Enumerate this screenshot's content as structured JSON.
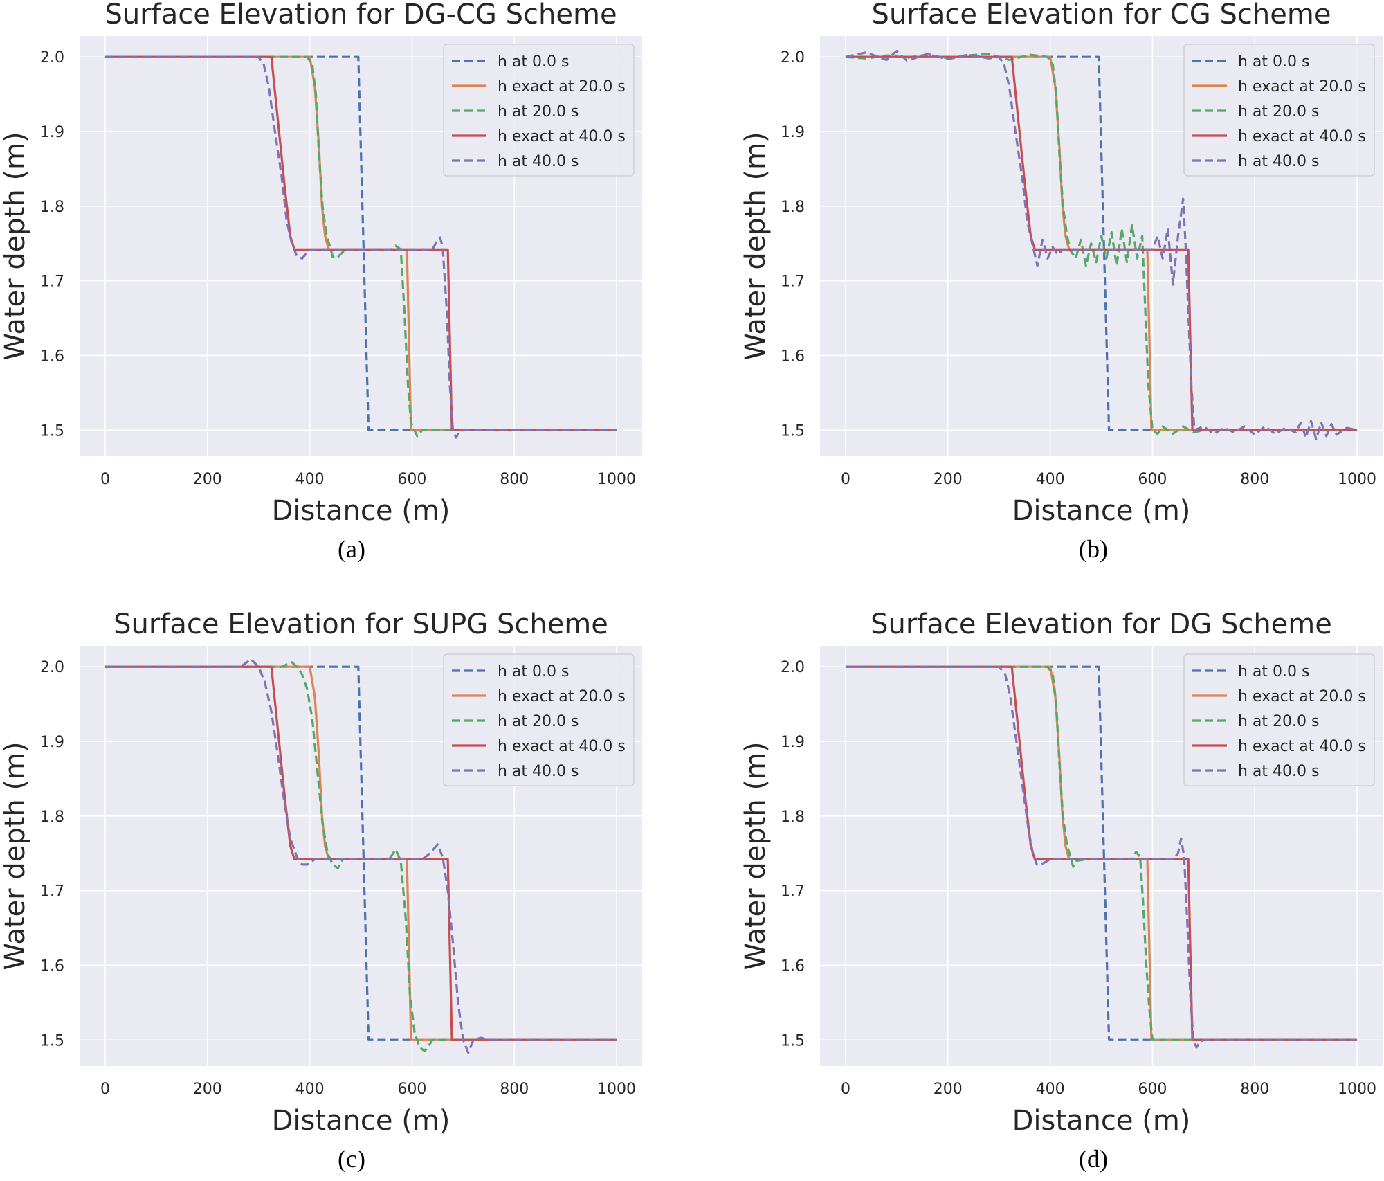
{
  "figure": {
    "captions": [
      "(a)",
      "(b)",
      "(c)",
      "(d)"
    ]
  },
  "series_style": [
    {
      "name": "h at 0.0 s",
      "color": "#4c72b0",
      "dashed": true
    },
    {
      "name": "h exact at 20.0 s",
      "color": "#dd8452",
      "dashed": false
    },
    {
      "name": "h at 20.0 s",
      "color": "#55a868",
      "dashed": true
    },
    {
      "name": "h exact at 40.0 s",
      "color": "#c44e52",
      "dashed": false
    },
    {
      "name": "h at 40.0 s",
      "color": "#8172b3",
      "dashed": true
    }
  ],
  "chart_data": [
    {
      "type": "line",
      "title": "Surface Elevation for DG-CG Scheme",
      "xlabel": "Distance (m)",
      "ylabel": "Water depth (m)",
      "xlim": [
        -50,
        1050
      ],
      "ylim": [
        1.465,
        2.028
      ],
      "xticks": [
        0,
        200,
        400,
        600,
        800,
        1000
      ],
      "yticks": [
        1.5,
        1.6,
        1.7,
        1.8,
        1.9,
        2.0
      ],
      "legend": "top-right",
      "series": [
        {
          "name": "h at 0.0 s",
          "x": [
            0,
            495,
            515,
            1000
          ],
          "y": [
            2.0,
            2.0,
            1.5,
            1.5
          ]
        },
        {
          "name": "h exact at 20.0 s",
          "x": [
            0,
            400,
            410,
            418,
            424,
            430,
            437,
            590,
            598,
            1000
          ],
          "y": [
            2.0,
            2.0,
            1.96,
            1.88,
            1.8,
            1.76,
            1.742,
            1.742,
            1.5,
            1.5
          ]
        },
        {
          "name": "h at 20.0 s",
          "x": [
            0,
            395,
            405,
            412,
            418,
            425,
            433,
            440,
            445,
            452,
            470,
            560,
            568,
            578,
            585,
            592,
            598,
            610,
            620,
            1000
          ],
          "y": [
            2.0,
            2.0,
            1.99,
            1.95,
            1.87,
            1.8,
            1.76,
            1.745,
            1.732,
            1.73,
            1.742,
            1.742,
            1.747,
            1.742,
            1.66,
            1.56,
            1.51,
            1.492,
            1.5,
            1.5
          ]
        },
        {
          "name": "h exact at 40.0 s",
          "x": [
            0,
            325,
            340,
            352,
            362,
            370,
            670,
            678,
            1000
          ],
          "y": [
            2.0,
            2.0,
            1.9,
            1.82,
            1.76,
            1.742,
            1.742,
            1.5,
            1.5
          ]
        },
        {
          "name": "h at 40.0 s",
          "x": [
            0,
            300,
            310,
            320,
            332,
            345,
            355,
            365,
            375,
            385,
            400,
            640,
            650,
            655,
            660,
            668,
            674,
            680,
            686,
            692,
            700,
            1000
          ],
          "y": [
            2.0,
            2.0,
            1.99,
            1.96,
            1.9,
            1.84,
            1.78,
            1.75,
            1.733,
            1.73,
            1.742,
            1.742,
            1.755,
            1.758,
            1.745,
            1.66,
            1.56,
            1.5,
            1.49,
            1.497,
            1.5,
            1.5
          ]
        }
      ]
    },
    {
      "type": "line",
      "title": "Surface Elevation for CG Scheme",
      "xlabel": "Distance (m)",
      "ylabel": "Water depth (m)",
      "xlim": [
        -50,
        1050
      ],
      "ylim": [
        1.465,
        2.028
      ],
      "xticks": [
        0,
        200,
        400,
        600,
        800,
        1000
      ],
      "yticks": [
        1.5,
        1.6,
        1.7,
        1.8,
        1.9,
        2.0
      ],
      "legend": "top-right",
      "series": [
        {
          "name": "h at 0.0 s",
          "x": [
            0,
            495,
            515,
            1000
          ],
          "y": [
            2.0,
            2.0,
            1.5,
            1.5
          ]
        },
        {
          "name": "h exact at 20.0 s",
          "x": [
            0,
            400,
            410,
            418,
            424,
            430,
            437,
            590,
            598,
            1000
          ],
          "y": [
            2.0,
            2.0,
            1.96,
            1.88,
            1.8,
            1.76,
            1.742,
            1.742,
            1.5,
            1.5
          ]
        },
        {
          "name": "h at 20.0 s",
          "x": [
            0,
            40,
            80,
            120,
            160,
            200,
            240,
            280,
            320,
            360,
            395,
            405,
            412,
            418,
            425,
            433,
            440,
            450,
            460,
            470,
            480,
            490,
            500,
            510,
            520,
            530,
            540,
            550,
            560,
            570,
            580,
            586,
            592,
            600,
            610,
            620,
            640,
            660,
            680,
            700,
            1000
          ],
          "y": [
            2.0,
            1.998,
            2.002,
            1.999,
            2.003,
            1.998,
            2.002,
            2.004,
            1.996,
            2.003,
            2.0,
            1.99,
            1.95,
            1.87,
            1.8,
            1.76,
            1.74,
            1.73,
            1.755,
            1.72,
            1.75,
            1.725,
            1.76,
            1.73,
            1.765,
            1.72,
            1.77,
            1.725,
            1.775,
            1.73,
            1.76,
            1.66,
            1.56,
            1.5,
            1.495,
            1.505,
            1.495,
            1.505,
            1.497,
            1.5,
            1.5
          ]
        },
        {
          "name": "h exact at 40.0 s",
          "x": [
            0,
            325,
            340,
            352,
            362,
            370,
            670,
            678,
            1000
          ],
          "y": [
            2.0,
            2.0,
            1.9,
            1.82,
            1.76,
            1.742,
            1.742,
            1.5,
            1.5
          ]
        },
        {
          "name": "h at 40.0 s",
          "x": [
            0,
            40,
            80,
            100,
            120,
            160,
            200,
            240,
            280,
            300,
            310,
            320,
            332,
            345,
            355,
            365,
            375,
            385,
            395,
            405,
            415,
            425,
            600,
            610,
            620,
            630,
            640,
            650,
            660,
            665,
            670,
            676,
            682,
            700,
            720,
            740,
            760,
            780,
            800,
            820,
            840,
            860,
            880,
            890,
            900,
            910,
            920,
            930,
            940,
            950,
            960,
            980,
            1000
          ],
          "y": [
            2.0,
            2.006,
            1.996,
            2.008,
            1.995,
            2.004,
            1.997,
            2.003,
            1.998,
            2.0,
            1.99,
            1.96,
            1.9,
            1.84,
            1.78,
            1.75,
            1.72,
            1.755,
            1.73,
            1.745,
            1.735,
            1.742,
            1.742,
            1.76,
            1.73,
            1.77,
            1.695,
            1.76,
            1.81,
            1.745,
            1.66,
            1.56,
            1.5,
            1.505,
            1.495,
            1.503,
            1.497,
            1.505,
            1.494,
            1.505,
            1.495,
            1.503,
            1.497,
            1.51,
            1.49,
            1.512,
            1.488,
            1.51,
            1.492,
            1.508,
            1.494,
            1.503,
            1.5
          ]
        }
      ]
    },
    {
      "type": "line",
      "title": "Surface Elevation for SUPG Scheme",
      "xlabel": "Distance (m)",
      "ylabel": "Water depth (m)",
      "xlim": [
        -50,
        1050
      ],
      "ylim": [
        1.465,
        2.028
      ],
      "xticks": [
        0,
        200,
        400,
        600,
        800,
        1000
      ],
      "yticks": [
        1.5,
        1.6,
        1.7,
        1.8,
        1.9,
        2.0
      ],
      "legend": "top-right",
      "series": [
        {
          "name": "h at 0.0 s",
          "x": [
            0,
            495,
            515,
            1000
          ],
          "y": [
            2.0,
            2.0,
            1.5,
            1.5
          ]
        },
        {
          "name": "h exact at 20.0 s",
          "x": [
            0,
            400,
            410,
            418,
            424,
            430,
            437,
            590,
            598,
            1000
          ],
          "y": [
            2.0,
            2.0,
            1.96,
            1.88,
            1.8,
            1.76,
            1.742,
            1.742,
            1.5,
            1.5
          ]
        },
        {
          "name": "h at 20.0 s",
          "x": [
            0,
            345,
            365,
            375,
            385,
            395,
            405,
            415,
            425,
            435,
            445,
            455,
            465,
            555,
            568,
            578,
            588,
            596,
            605,
            615,
            625,
            640,
            1000
          ],
          "y": [
            2.0,
            2.0,
            2.006,
            2.0,
            1.99,
            1.97,
            1.93,
            1.86,
            1.79,
            1.75,
            1.735,
            1.73,
            1.742,
            1.742,
            1.755,
            1.74,
            1.66,
            1.56,
            1.51,
            1.49,
            1.485,
            1.5,
            1.5
          ]
        },
        {
          "name": "h exact at 40.0 s",
          "x": [
            0,
            325,
            340,
            352,
            362,
            370,
            670,
            678,
            1000
          ],
          "y": [
            2.0,
            2.0,
            1.9,
            1.82,
            1.76,
            1.742,
            1.742,
            1.5,
            1.5
          ]
        },
        {
          "name": "h at 40.0 s",
          "x": [
            0,
            265,
            285,
            300,
            312,
            325,
            338,
            350,
            362,
            375,
            385,
            395,
            410,
            620,
            635,
            650,
            660,
            670,
            680,
            690,
            700,
            710,
            720,
            735,
            750,
            1000
          ],
          "y": [
            2.0,
            2.0,
            2.01,
            2.0,
            1.98,
            1.94,
            1.88,
            1.82,
            1.77,
            1.745,
            1.735,
            1.735,
            1.742,
            1.742,
            1.75,
            1.762,
            1.745,
            1.7,
            1.63,
            1.55,
            1.5,
            1.483,
            1.5,
            1.503,
            1.5,
            1.5
          ]
        }
      ]
    },
    {
      "type": "line",
      "title": "Surface Elevation for DG Scheme",
      "xlabel": "Distance (m)",
      "ylabel": "Water depth (m)",
      "xlim": [
        -50,
        1050
      ],
      "ylim": [
        1.465,
        2.028
      ],
      "xticks": [
        0,
        200,
        400,
        600,
        800,
        1000
      ],
      "yticks": [
        1.5,
        1.6,
        1.7,
        1.8,
        1.9,
        2.0
      ],
      "legend": "top-right",
      "series": [
        {
          "name": "h at 0.0 s",
          "x": [
            0,
            495,
            515,
            1000
          ],
          "y": [
            2.0,
            2.0,
            1.5,
            1.5
          ]
        },
        {
          "name": "h exact at 20.0 s",
          "x": [
            0,
            400,
            410,
            418,
            424,
            430,
            437,
            590,
            598,
            1000
          ],
          "y": [
            2.0,
            2.0,
            1.96,
            1.88,
            1.8,
            1.76,
            1.742,
            1.742,
            1.5,
            1.5
          ]
        },
        {
          "name": "h at 20.0 s",
          "x": [
            0,
            395,
            405,
            412,
            418,
            425,
            433,
            440,
            445,
            452,
            470,
            560,
            568,
            576,
            582,
            588,
            594,
            600,
            1000
          ],
          "y": [
            2.0,
            2.0,
            1.99,
            1.95,
            1.87,
            1.8,
            1.76,
            1.745,
            1.732,
            1.74,
            1.742,
            1.742,
            1.752,
            1.745,
            1.68,
            1.6,
            1.54,
            1.5,
            1.5
          ]
        },
        {
          "name": "h exact at 40.0 s",
          "x": [
            0,
            325,
            340,
            352,
            362,
            370,
            670,
            678,
            1000
          ],
          "y": [
            2.0,
            2.0,
            1.9,
            1.82,
            1.76,
            1.742,
            1.742,
            1.5,
            1.5
          ]
        },
        {
          "name": "h at 40.0 s",
          "x": [
            0,
            300,
            312,
            322,
            334,
            346,
            358,
            366,
            374,
            382,
            400,
            640,
            650,
            656,
            662,
            668,
            674,
            680,
            686,
            692,
            700,
            1000
          ],
          "y": [
            2.0,
            2.0,
            1.99,
            1.96,
            1.9,
            1.84,
            1.78,
            1.75,
            1.735,
            1.735,
            1.742,
            1.742,
            1.75,
            1.77,
            1.745,
            1.66,
            1.56,
            1.5,
            1.49,
            1.497,
            1.5,
            1.5
          ]
        }
      ]
    }
  ]
}
